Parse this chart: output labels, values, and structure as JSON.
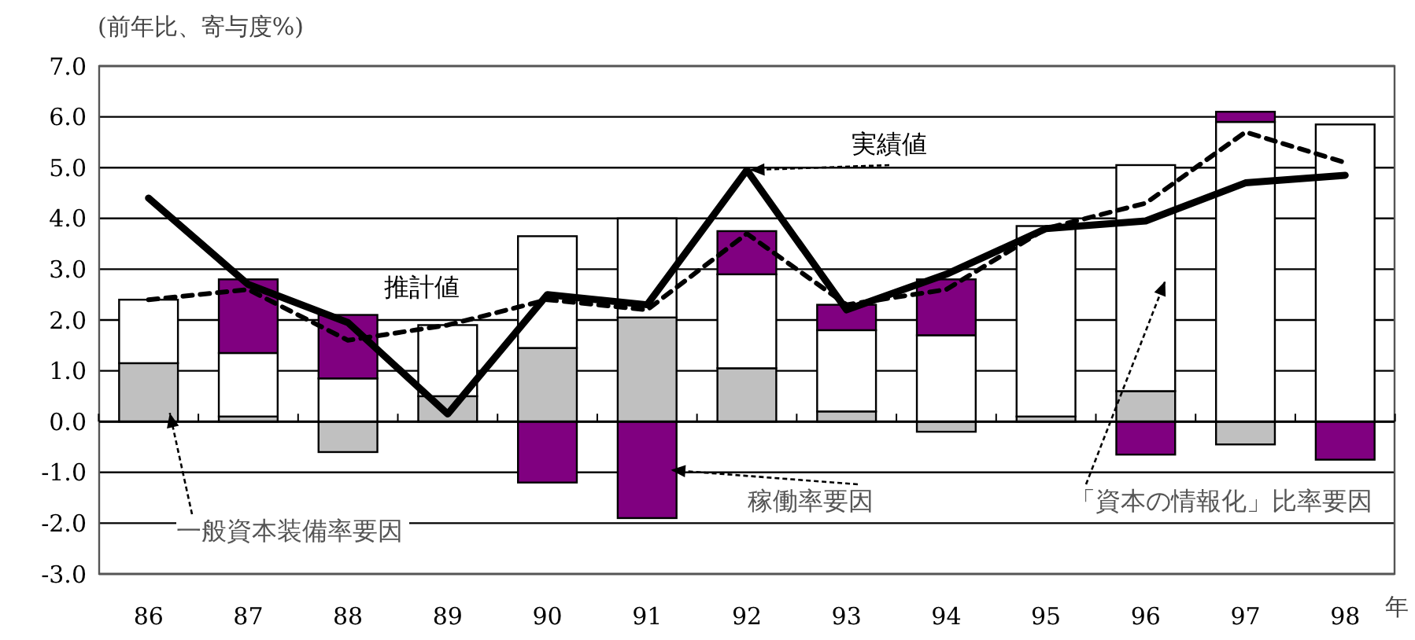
{
  "chart_data": {
    "type": "bar",
    "stacked": true,
    "ylabel": "(前年比、寄与度%)",
    "xlabel": "年",
    "categories": [
      "86",
      "87",
      "88",
      "89",
      "90",
      "91",
      "92",
      "93",
      "94",
      "95",
      "96",
      "97",
      "98"
    ],
    "ylim": [
      -3,
      7
    ],
    "yticks": [
      {
        "value": -3,
        "label": "-3.0"
      },
      {
        "value": -2,
        "label": "-2.0"
      },
      {
        "value": -1,
        "label": "-1.0"
      },
      {
        "value": 0,
        "label": "0.0"
      },
      {
        "value": 1,
        "label": "1.0"
      },
      {
        "value": 2,
        "label": "2.0"
      },
      {
        "value": 3,
        "label": "3.0"
      },
      {
        "value": 4,
        "label": "4.0"
      },
      {
        "value": 5,
        "label": "5.0"
      },
      {
        "value": 6,
        "label": "6.0"
      },
      {
        "value": 7,
        "label": "7.0"
      }
    ],
    "grid": "y",
    "legend": false,
    "marker": "none",
    "series": [
      {
        "name": "一般資本装備率要因",
        "color": "#c0c0c0",
        "values": [
          1.15,
          0.1,
          -0.6,
          0.5,
          1.45,
          2.05,
          1.05,
          0.2,
          -0.2,
          0.1,
          0.6,
          -0.45,
          0
        ]
      },
      {
        "name": "「資本の情報化」比率要因",
        "color": "#ffffff",
        "values": [
          1.25,
          1.25,
          0.85,
          1.4,
          2.2,
          1.95,
          1.85,
          1.6,
          1.7,
          3.75,
          4.45,
          5.9,
          5.85
        ]
      },
      {
        "name": "稼働率要因",
        "color": "#800080",
        "values": [
          0,
          1.45,
          1.25,
          0,
          -1.2,
          -1.9,
          0.85,
          0.5,
          1.1,
          0,
          -0.65,
          0.2,
          -0.75
        ]
      },
      {
        "name": "実績値",
        "type": "line",
        "color": "#000000",
        "line_style": "solid",
        "values": [
          4.4,
          2.7,
          1.95,
          0.15,
          2.5,
          2.3,
          4.95,
          2.2,
          2.9,
          3.8,
          3.95,
          4.7,
          4.85
        ]
      },
      {
        "name": "推計値",
        "type": "line",
        "color": "#000000",
        "line_style": "dashed",
        "values": [
          2.4,
          2.6,
          1.6,
          1.9,
          2.4,
          2.2,
          3.7,
          2.3,
          2.6,
          3.8,
          4.3,
          5.7,
          5.1
        ]
      }
    ]
  }
}
